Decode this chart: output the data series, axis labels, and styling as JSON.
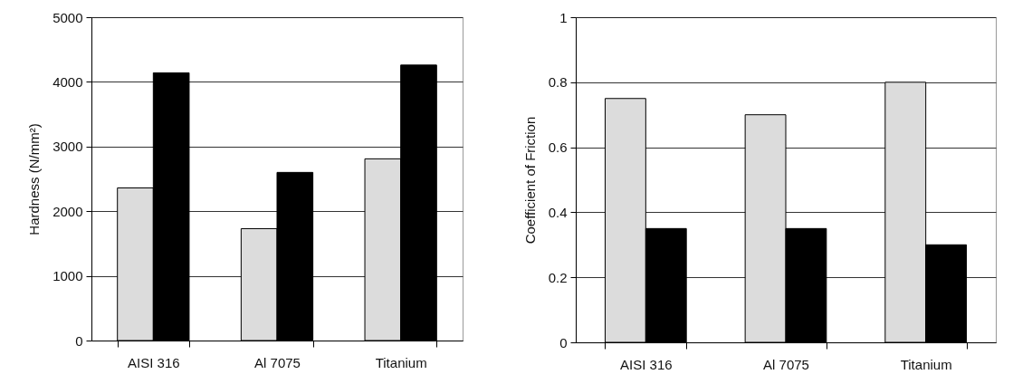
{
  "chart_data": [
    {
      "type": "bar",
      "ylabel": "Hardness (N/mm²)",
      "categories": [
        "AISI 316",
        "Al 7075",
        "Titanium"
      ],
      "series": [
        {
          "color": "#dcdcdc",
          "values": [
            2360,
            1730,
            2810
          ]
        },
        {
          "color": "#000000",
          "values": [
            4140,
            2600,
            4260
          ]
        }
      ],
      "ylim": [
        0,
        5000
      ],
      "yticks": [
        0,
        1000,
        2000,
        3000,
        4000,
        5000
      ],
      "grid": "y",
      "legend": false
    },
    {
      "type": "bar",
      "ylabel": "Coefficient of Friction",
      "categories": [
        "AISI 316",
        "Al 7075",
        "Titanium"
      ],
      "series": [
        {
          "color": "#dcdcdc",
          "values": [
            0.75,
            0.7,
            0.8
          ]
        },
        {
          "color": "#000000",
          "values": [
            0.35,
            0.35,
            0.3
          ]
        }
      ],
      "ylim": [
        0,
        1
      ],
      "yticks": [
        0,
        0.2,
        0.4,
        0.6,
        0.8,
        1
      ],
      "grid": "y",
      "legend": false
    }
  ]
}
